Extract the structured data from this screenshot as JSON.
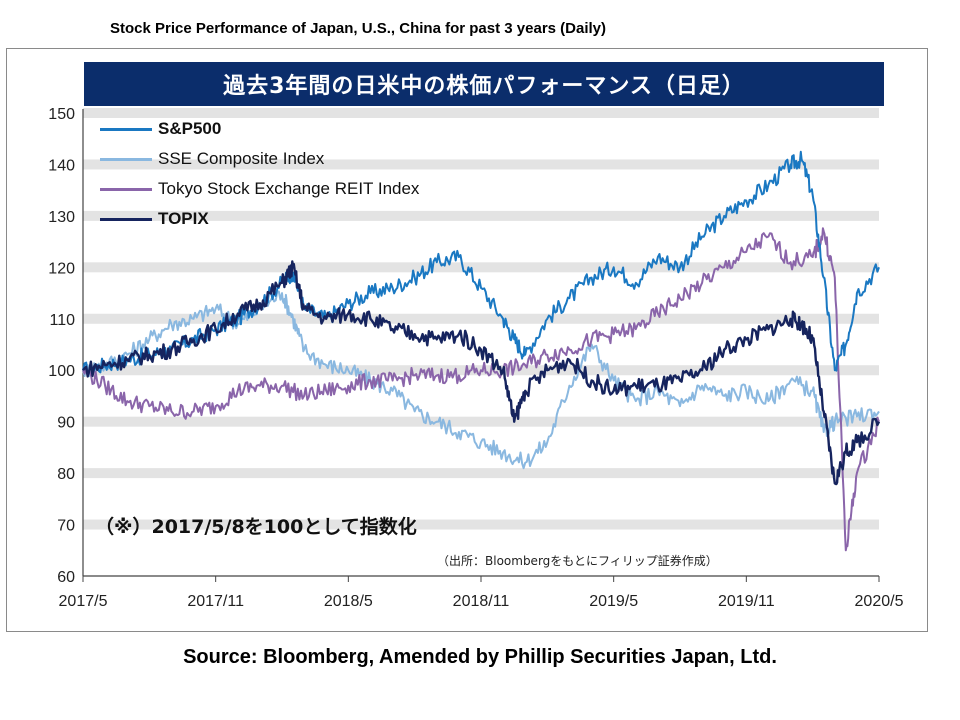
{
  "page_title": "Stock Price Performance of Japan, U.S., China for past 3 years (Daily)",
  "source_note": "Source: Bloomberg, Amended by Phillip Securities Japan, Ltd.",
  "chart_data": {
    "type": "line",
    "title": "過去3年間の日米中の株価パフォーマンス（日足）",
    "annotation": "（※）2017/5/8を100として指数化",
    "credit": "（出所：Bloombergをもとにフィリップ証券作成）",
    "x_tick_labels": [
      "2017/5",
      "2017/11",
      "2018/5",
      "2018/11",
      "2019/5",
      "2019/11",
      "2020/5"
    ],
    "x_range": [
      0,
      36
    ],
    "y_tick_labels": [
      "60",
      "70",
      "80",
      "90",
      "100",
      "110",
      "120",
      "130",
      "140",
      "150"
    ],
    "ylim": [
      60,
      150
    ],
    "grid": "horizontal bands",
    "legend_position": "top-left",
    "series": [
      {
        "name": "S&P500",
        "color": "#1a78c2",
        "x": [
          0,
          1,
          2,
          3,
          4,
          5,
          6,
          7,
          8,
          9,
          9.5,
          10,
          11,
          12,
          13,
          14,
          15,
          16,
          17,
          18,
          19,
          19.5,
          20,
          21,
          22,
          23,
          24,
          25,
          26,
          27,
          28,
          29,
          30,
          31,
          32,
          32.5,
          33,
          33.5,
          34,
          34.5,
          35,
          36
        ],
        "values": [
          100,
          101,
          102,
          103,
          104,
          106,
          108,
          110,
          113,
          117,
          119,
          112,
          110,
          113,
          115,
          116,
          118,
          121,
          122,
          116,
          110,
          106,
          103,
          110,
          114,
          118,
          120,
          117,
          122,
          120,
          126,
          130,
          133,
          136,
          140,
          141,
          134,
          118,
          100,
          105,
          115,
          120
        ]
      },
      {
        "name": "SSE Composite Index",
        "color": "#8ab8e0",
        "x": [
          0,
          1,
          2,
          3,
          4,
          5,
          6,
          7,
          8,
          9,
          9.5,
          10,
          11,
          12,
          13,
          14,
          15,
          16,
          17,
          18,
          19,
          20,
          21,
          22,
          23,
          24,
          25,
          26,
          27,
          28,
          29,
          30,
          31,
          32,
          33,
          33.5,
          34,
          35,
          36
        ],
        "values": [
          100,
          101,
          103,
          106,
          109,
          110,
          112,
          109,
          112,
          115,
          110,
          104,
          101,
          100,
          98,
          96,
          92,
          90,
          88,
          86,
          84,
          82,
          86,
          97,
          105,
          98,
          94,
          96,
          93,
          97,
          95,
          96,
          94,
          98,
          96,
          88,
          90,
          91,
          92
        ]
      },
      {
        "name": "Tokyo Stock Exchange REIT Index",
        "color": "#8a65aa",
        "x": [
          0,
          1,
          2,
          3,
          4,
          5,
          6,
          7,
          8,
          9,
          10,
          11,
          12,
          13,
          14,
          15,
          16,
          17,
          18,
          19,
          20,
          21,
          22,
          23,
          24,
          25,
          26,
          27,
          28,
          29,
          30,
          31,
          32,
          33,
          33.5,
          34,
          34.5,
          35,
          36
        ],
        "values": [
          100,
          97,
          94,
          93,
          92,
          92,
          93,
          96,
          97,
          97,
          95,
          96,
          97,
          98,
          98,
          99,
          99,
          99,
          100,
          100,
          101,
          103,
          104,
          106,
          107,
          108,
          111,
          114,
          117,
          120,
          123,
          126,
          121,
          122,
          127,
          118,
          65,
          80,
          90
        ]
      },
      {
        "name": "TOPIX",
        "color": "#16245e",
        "x": [
          0,
          1,
          2,
          3,
          4,
          5,
          6,
          7,
          8,
          9,
          9.5,
          10,
          11,
          12,
          13,
          14,
          15,
          16,
          17,
          18,
          19,
          19.5,
          20,
          21,
          22,
          23,
          24,
          25,
          26,
          27,
          28,
          29,
          30,
          31,
          32,
          32.5,
          33,
          33.5,
          34,
          34.5,
          35,
          36
        ],
        "values": [
          100,
          101,
          102,
          103,
          104,
          106,
          108,
          111,
          113,
          117,
          120,
          112,
          110,
          111,
          110,
          108,
          107,
          106,
          107,
          104,
          100,
          90,
          96,
          100,
          102,
          98,
          96,
          97,
          97,
          98,
          100,
          104,
          106,
          108,
          110,
          109,
          106,
          92,
          78,
          84,
          86,
          90
        ]
      }
    ]
  }
}
